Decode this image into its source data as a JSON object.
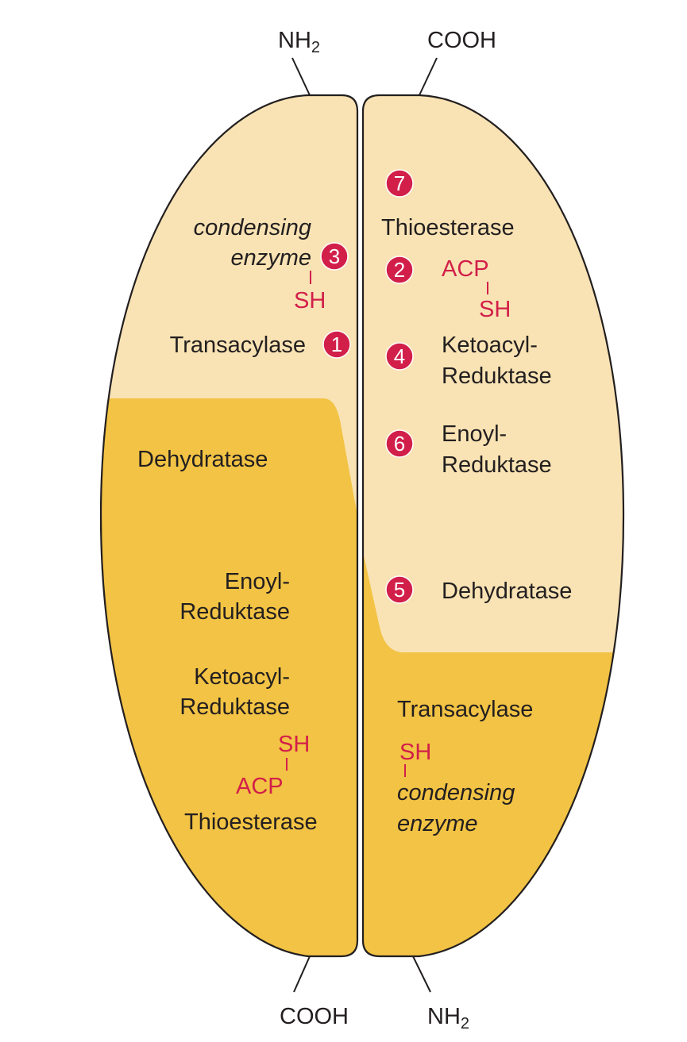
{
  "colors": {
    "light_domain": "#f9e3b4",
    "dark_domain": "#f2c344",
    "outline": "#231f20",
    "accent_red": "#d21f4a",
    "circle_text": "#ffffff"
  },
  "terminals": {
    "top_left": {
      "main": "NH",
      "sub": "2"
    },
    "top_right": "COOH",
    "bottom_left": "COOH",
    "bottom_right": {
      "main": "NH",
      "sub": "2"
    }
  },
  "left_subunit": {
    "condensing_line1": "condensing",
    "condensing_line2": "enzyme",
    "step_condensing": "3",
    "sh": "SH",
    "transacylase": "Transacylase",
    "step_transacylase": "1",
    "dehydratase": "Dehydratase",
    "enoyl_line1": "Enoyl-",
    "enoyl_line2": "Reduktase",
    "ketoacyl_line1": "Ketoacyl-",
    "ketoacyl_line2": "Reduktase",
    "sh_bottom": "SH",
    "acp": "ACP",
    "thioesterase": "Thioesterase"
  },
  "right_subunit": {
    "step_thioesterase": "7",
    "thioesterase": "Thioesterase",
    "step_acp": "2",
    "acp": "ACP",
    "sh": "SH",
    "step_ketoacyl": "4",
    "ketoacyl_line1": "Ketoacyl-",
    "ketoacyl_line2": "Reduktase",
    "step_enoyl": "6",
    "enoyl_line1": "Enoyl-",
    "enoyl_line2": "Reduktase",
    "step_dehydratase": "5",
    "dehydratase": "Dehydratase",
    "transacylase": "Transacylase",
    "sh_bottom": "SH",
    "condensing_line1": "condensing",
    "condensing_line2": "enzyme"
  }
}
